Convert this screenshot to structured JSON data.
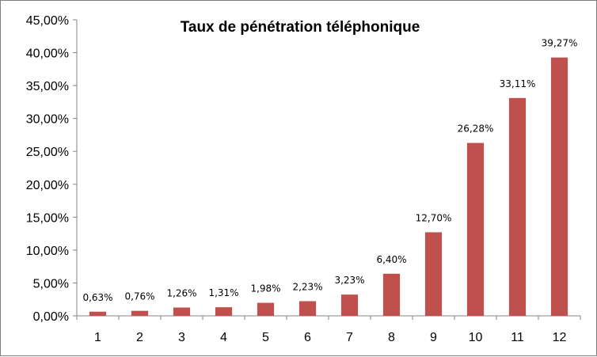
{
  "chart_data": {
    "type": "bar",
    "title": "Taux de pénétration téléphonique",
    "categories": [
      "1",
      "2",
      "3",
      "4",
      "5",
      "6",
      "7",
      "8",
      "9",
      "10",
      "11",
      "12"
    ],
    "values": [
      0.63,
      0.76,
      1.26,
      1.31,
      1.98,
      2.23,
      3.23,
      6.4,
      12.7,
      26.28,
      33.11,
      39.27
    ],
    "data_labels": [
      "0,63%",
      "0,76%",
      "1,26%",
      "1,31%",
      "1,98%",
      "2,23%",
      "3,23%",
      "6,40%",
      "12,70%",
      "26,28%",
      "33,11%",
      "39,27%"
    ],
    "y_ticks": [
      0,
      5,
      10,
      15,
      20,
      25,
      30,
      35,
      40,
      45
    ],
    "y_tick_labels": [
      "0,00%",
      "5,00%",
      "10,00%",
      "15,00%",
      "20,00%",
      "25,00%",
      "30,00%",
      "35,00%",
      "40,00%",
      "45,00%"
    ],
    "ylim": [
      0,
      45
    ],
    "xlabel": "",
    "ylabel": "",
    "grid": false,
    "legend": "none",
    "bar_color": "#c0504d"
  }
}
